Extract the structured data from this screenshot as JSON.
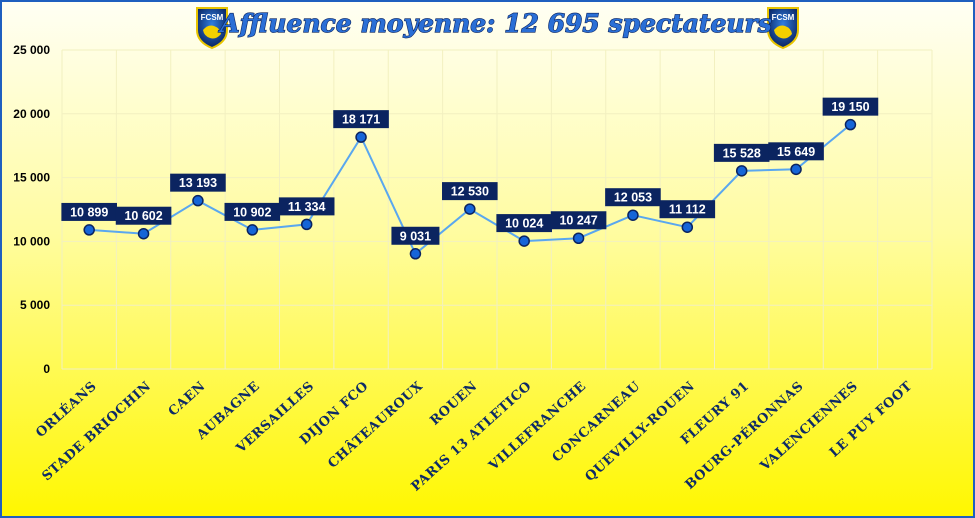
{
  "colors": {
    "line": "#5aa7ef",
    "marker": "#1565d8",
    "marker_stroke": "#0b2460",
    "label_bg": "#0b2460",
    "label_text": "#ffffff",
    "grid": "#f2f0c0",
    "axis_text": "#0d2a66"
  },
  "logos": [
    {
      "text": "FCSM",
      "icon": "fcsm-lion-crest-icon"
    },
    {
      "text": "FCSM",
      "icon": "fcsm-lion-crest-icon"
    }
  ],
  "chart_data": {
    "type": "line",
    "title": "Affluence moyenne: 12 695 spectateurs",
    "categories": [
      "ORLÉANS",
      "STADE BRIOCHIN",
      "CAEN",
      "AUBAGNE",
      "VERSAILLES",
      "DIJON FCO",
      "CHÂTEAUROUX",
      "ROUEN",
      "PARIS 13 ATLETICO",
      "VILLEFRANCHE",
      "CONCARNEAU",
      "QUEVILLY-ROUEN",
      "FLEURY 91",
      "BOURG-PÉRONNAS",
      "VALENCIENNES",
      "LE PUY FOOT"
    ],
    "values": [
      10899,
      10602,
      13193,
      10902,
      11334,
      18171,
      9031,
      12530,
      10024,
      10247,
      12053,
      11112,
      15528,
      15649,
      19150,
      null
    ],
    "value_labels": [
      "10 899",
      "10 602",
      "13 193",
      "10 902",
      "11 334",
      "18 171",
      "9 031",
      "12 530",
      "10 024",
      "10 247",
      "12 053",
      "11 112",
      "15 528",
      "15 649",
      "19 150",
      ""
    ],
    "yticks": [
      0,
      5000,
      10000,
      15000,
      20000,
      25000
    ],
    "ytick_labels": [
      "0",
      "5 000",
      "10 000",
      "15 000",
      "20 000",
      "25 000"
    ],
    "ylim": [
      0,
      25000
    ],
    "xlabel": "",
    "ylabel": "",
    "grid": true,
    "legend": "none"
  }
}
